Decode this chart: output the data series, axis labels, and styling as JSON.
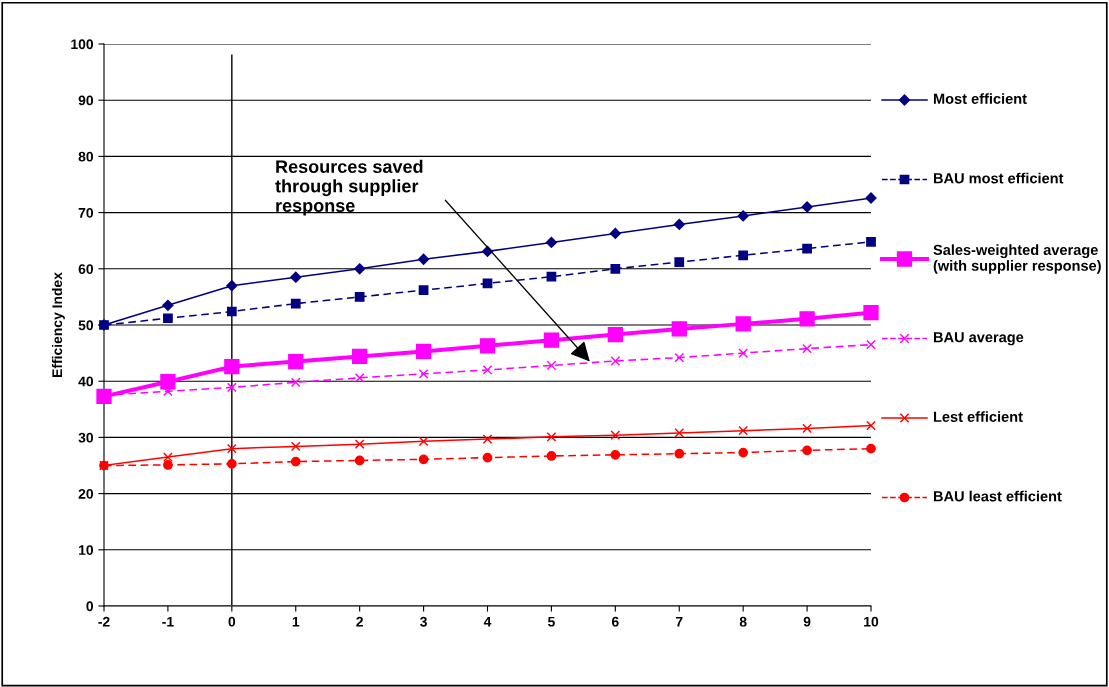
{
  "chart_data": {
    "type": "line",
    "ylabel": "Efficiency Index",
    "x": [
      -2,
      -1,
      0,
      1,
      2,
      3,
      4,
      5,
      6,
      7,
      8,
      9,
      10
    ],
    "xlim": [
      -2,
      10
    ],
    "xticks": [
      -2,
      -1,
      0,
      1,
      2,
      3,
      4,
      5,
      6,
      7,
      8,
      9,
      10
    ],
    "ylim": [
      0,
      100
    ],
    "yticks": [
      0,
      10,
      20,
      30,
      40,
      50,
      60,
      70,
      80,
      90,
      100
    ],
    "grid": "y",
    "legend": "right",
    "series": [
      {
        "name": "Most efficient",
        "color": "#000080",
        "marker": "diamond",
        "line_style": "solid",
        "values": [
          50,
          53.5,
          57,
          58.5,
          60,
          61.7,
          63.1,
          64.7,
          66.3,
          67.9,
          69.4,
          71,
          72.6
        ]
      },
      {
        "name": "BAU most efficient",
        "color": "#000080",
        "marker": "square",
        "line_style": "dashed",
        "values": [
          50,
          51.2,
          52.4,
          53.8,
          55,
          56.2,
          57.4,
          58.6,
          60,
          61.2,
          62.4,
          63.6,
          64.8
        ]
      },
      {
        "name": "Sales-weighted average (with supplier response)",
        "color": "#ff00ff",
        "marker": "square",
        "line_style": "solid",
        "values": [
          37.3,
          39.9,
          42.6,
          43.5,
          44.4,
          45.3,
          46.3,
          47.3,
          48.3,
          49.3,
          50.2,
          51.1,
          52.2
        ]
      },
      {
        "name": "BAU average",
        "color": "#ff00ff",
        "marker": "cross",
        "line_style": "dashed",
        "values": [
          37.5,
          38.2,
          38.9,
          39.8,
          40.6,
          41.3,
          42,
          42.8,
          43.6,
          44.2,
          45,
          45.8,
          46.5
        ]
      },
      {
        "name": "Lest efficient",
        "color": "#ff0000",
        "marker": "cross",
        "line_style": "solid",
        "values": [
          25,
          26.5,
          28,
          28.4,
          28.8,
          29.3,
          29.7,
          30.1,
          30.4,
          30.8,
          31.2,
          31.6,
          32.1
        ]
      },
      {
        "name": "BAU least efficient",
        "color": "#ff0000",
        "marker": "circle",
        "line_style": "dashed",
        "values": [
          25,
          25.1,
          25.3,
          25.7,
          25.9,
          26.1,
          26.4,
          26.7,
          26.9,
          27.1,
          27.3,
          27.7,
          28
        ]
      }
    ],
    "ref_lines": [
      {
        "axis": "x",
        "value": 0,
        "color": "#000000"
      }
    ],
    "annotations": [
      {
        "text": "Resources saved\nthrough supplier\nresponse",
        "x": 5.6,
        "y": 43.5
      }
    ]
  }
}
